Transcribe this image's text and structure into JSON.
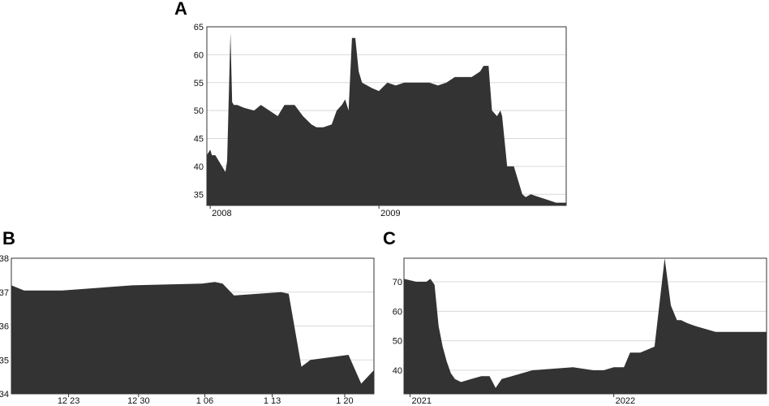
{
  "panels": {
    "a": {
      "letter": "A"
    },
    "b": {
      "letter": "B"
    },
    "c": {
      "letter": "C"
    }
  },
  "colors": {
    "area": "#333333",
    "grid": "#d9d9d9",
    "frame": "#333333"
  },
  "chart_data": [
    {
      "id": "A",
      "type": "area",
      "title": "",
      "xlabel": "",
      "ylabel": "",
      "xlim": [
        2007.98,
        2010.11
      ],
      "ylim": [
        33,
        65
      ],
      "yticks": [
        35,
        40,
        45,
        50,
        55,
        60,
        65
      ],
      "xticks": [
        {
          "value": 2008.0,
          "label": "2008"
        },
        {
          "value": 2009.0,
          "label": "2009"
        }
      ],
      "grid": true,
      "x": [
        2007.98,
        2008.0,
        2008.01,
        2008.03,
        2008.05,
        2008.07,
        2008.09,
        2008.1,
        2008.12,
        2008.13,
        2008.14,
        2008.16,
        2008.2,
        2008.26,
        2008.3,
        2008.35,
        2008.4,
        2008.44,
        2008.5,
        2008.55,
        2008.6,
        2008.63,
        2008.67,
        2008.72,
        2008.75,
        2008.78,
        2008.8,
        2008.82,
        2008.84,
        2008.86,
        2008.88,
        2008.9,
        2008.93,
        2008.96,
        2009.0,
        2009.05,
        2009.1,
        2009.15,
        2009.2,
        2009.3,
        2009.35,
        2009.4,
        2009.45,
        2009.55,
        2009.6,
        2009.62,
        2009.65,
        2009.67,
        2009.7,
        2009.72,
        2009.73,
        2009.76,
        2009.8,
        2009.85,
        2009.87,
        2009.9,
        2009.95,
        2010.0,
        2010.05,
        2010.11
      ],
      "values": [
        42,
        43,
        42,
        42,
        41,
        40,
        39,
        41,
        64,
        51.5,
        51,
        51,
        50.5,
        50,
        51,
        50,
        49,
        51,
        51,
        49,
        47.5,
        47,
        47,
        47.5,
        50,
        51,
        52,
        50,
        63,
        63,
        57,
        55,
        54.5,
        54,
        53.5,
        55,
        54.5,
        55,
        55,
        55,
        54.5,
        55,
        56,
        56,
        57,
        58,
        58,
        50,
        49,
        50,
        49,
        40,
        40,
        35,
        34.5,
        35,
        34.5,
        34,
        33.5,
        33.5
      ]
    },
    {
      "id": "B",
      "type": "area",
      "title": "",
      "xlabel": "",
      "ylabel": "",
      "xlim": [
        0,
        28.5
      ],
      "ylim": [
        34,
        38
      ],
      "yticks": [
        34,
        35,
        36,
        37,
        38
      ],
      "xticks": [
        {
          "value": 4.5,
          "label": "12 23"
        },
        {
          "value": 10,
          "label": "12 30"
        },
        {
          "value": 15.2,
          "label": "1 06"
        },
        {
          "value": 20.5,
          "label": "1 13"
        },
        {
          "value": 26.2,
          "label": "1 20"
        }
      ],
      "grid": true,
      "x": [
        0,
        1,
        4,
        9.5,
        15,
        16,
        16.6,
        17.5,
        21.2,
        21.8,
        22.8,
        23.5,
        26.5,
        27.5,
        28.5
      ],
      "values": [
        37.2,
        37.05,
        37.05,
        37.2,
        37.25,
        37.3,
        37.25,
        36.9,
        37,
        36.95,
        34.8,
        35,
        35.15,
        34.3,
        34.7
      ]
    },
    {
      "id": "C",
      "type": "area",
      "title": "",
      "xlabel": "",
      "ylabel": "",
      "xlim": [
        2020.97,
        2022.75
      ],
      "ylim": [
        32,
        78
      ],
      "yticks": [
        40,
        50,
        60,
        70
      ],
      "xticks": [
        {
          "value": 2021.0,
          "label": "2021"
        },
        {
          "value": 2022.0,
          "label": "2022"
        }
      ],
      "grid": true,
      "x": [
        2020.97,
        2021.03,
        2021.08,
        2021.1,
        2021.12,
        2021.14,
        2021.16,
        2021.18,
        2021.2,
        2021.22,
        2021.25,
        2021.3,
        2021.35,
        2021.39,
        2021.42,
        2021.45,
        2021.5,
        2021.6,
        2021.7,
        2021.8,
        2021.9,
        2021.95,
        2022.0,
        2022.05,
        2022.08,
        2022.13,
        2022.2,
        2022.25,
        2022.28,
        2022.31,
        2022.33,
        2022.36,
        2022.4,
        2022.45,
        2022.5,
        2022.55,
        2022.6,
        2022.65,
        2022.7,
        2022.75
      ],
      "values": [
        71,
        70,
        70,
        71,
        69,
        55,
        48,
        43,
        39,
        37,
        36,
        37,
        38,
        38,
        34,
        37,
        38,
        40,
        40.5,
        41,
        40,
        40,
        41,
        41,
        46,
        46,
        48,
        78,
        62,
        57,
        57,
        56,
        55,
        54,
        53,
        53,
        53,
        53,
        53,
        53
      ]
    }
  ]
}
